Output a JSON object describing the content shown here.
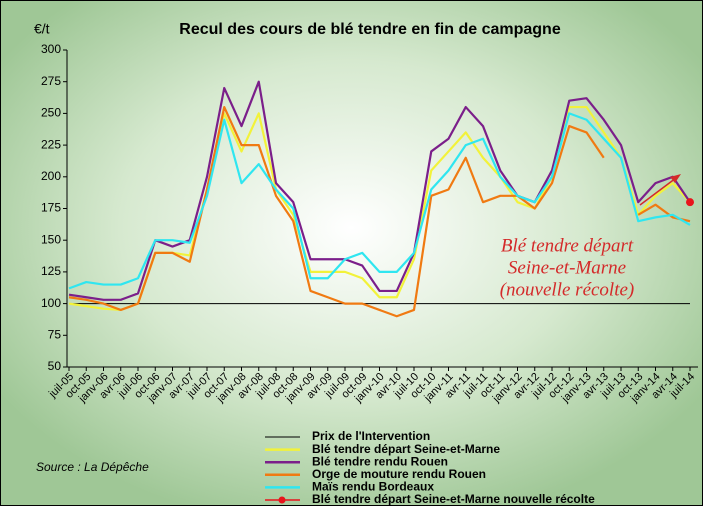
{
  "chart_data": {
    "type": "line",
    "title": "Recul des cours de blé tendre en fin de campagne",
    "y_unit": "€/t",
    "source": "Source : La Dépêche",
    "annotation": [
      "Blé tendre départ",
      "Seine-et-Marne",
      "(nouvelle récolte)"
    ],
    "categories": [
      "juil-05",
      "oct-05",
      "janv-06",
      "avr-06",
      "juil-06",
      "oct-06",
      "janv-07",
      "avr-07",
      "juil-07",
      "oct-07",
      "janv-08",
      "avr-08",
      "juil-08",
      "oct-08",
      "janv-09",
      "avr-09",
      "juil-09",
      "oct-09",
      "janv-10",
      "avr-10",
      "juil-10",
      "oct-10",
      "janv-11",
      "avr-11",
      "juil-11",
      "oct-11",
      "janv-12",
      "avr-12",
      "juil-12",
      "oct-12",
      "janv-13",
      "avr-13",
      "juil-13",
      "oct-13",
      "janv-14",
      "avr-14",
      "juil-14"
    ],
    "series": [
      {
        "name": "Prix de l'Intervention",
        "color": "#000000",
        "values": [
          100,
          100,
          100,
          100,
          100,
          100,
          100,
          100,
          100,
          100,
          100,
          100,
          100,
          100,
          100,
          100,
          100,
          100,
          100,
          100,
          100,
          100,
          100,
          100,
          100,
          100,
          100,
          100,
          100,
          100,
          100,
          100,
          100,
          100,
          100,
          100,
          100
        ]
      },
      {
        "name": "Blé tendre départ Seine-et-Marne",
        "color": "#f2f23a",
        "values": [
          100,
          98,
          96,
          95,
          100,
          140,
          140,
          138,
          190,
          250,
          220,
          250,
          190,
          170,
          125,
          125,
          125,
          120,
          105,
          105,
          135,
          205,
          220,
          235,
          215,
          200,
          180,
          175,
          200,
          255,
          255,
          235,
          215,
          170,
          185,
          195,
          180
        ]
      },
      {
        "name": "Blé tendre rendu Rouen",
        "color": "#7b1f8a",
        "values": [
          107,
          105,
          103,
          103,
          108,
          150,
          145,
          150,
          200,
          270,
          240,
          275,
          195,
          180,
          135,
          135,
          135,
          130,
          110,
          110,
          140,
          220,
          230,
          255,
          240,
          205,
          185,
          180,
          205,
          260,
          262,
          245,
          225,
          180,
          195,
          200,
          180
        ]
      },
      {
        "name": "Orge de mouture rendu Rouen",
        "color": "#f07a12",
        "values": [
          105,
          103,
          100,
          95,
          100,
          140,
          140,
          133,
          190,
          255,
          225,
          225,
          185,
          165,
          110,
          105,
          100,
          100,
          95,
          90,
          95,
          185,
          190,
          215,
          180,
          185,
          185,
          175,
          195,
          240,
          235,
          215,
          null,
          170,
          178,
          168,
          165
        ]
      },
      {
        "name": "Maïs rendu Bordeaux",
        "color": "#2fe6f0",
        "values": [
          112,
          117,
          115,
          115,
          120,
          150,
          150,
          148,
          185,
          245,
          195,
          210,
          190,
          175,
          120,
          120,
          135,
          140,
          125,
          125,
          140,
          190,
          205,
          225,
          230,
          200,
          185,
          180,
          200,
          250,
          245,
          230,
          215,
          165,
          168,
          170,
          162
        ]
      },
      {
        "name": "Blé tendre départ Seine-et-Marne nouvelle récolte",
        "color": "#e8141c",
        "marker": "circle",
        "values": [
          null,
          null,
          null,
          null,
          null,
          null,
          null,
          null,
          null,
          null,
          null,
          null,
          null,
          null,
          null,
          null,
          null,
          null,
          null,
          null,
          null,
          null,
          null,
          null,
          null,
          null,
          null,
          null,
          null,
          null,
          null,
          null,
          null,
          null,
          null,
          null,
          180
        ]
      }
    ],
    "ylim": [
      50,
      300
    ],
    "yticks": [
      50,
      75,
      100,
      125,
      150,
      175,
      200,
      225,
      250,
      275,
      300
    ]
  }
}
